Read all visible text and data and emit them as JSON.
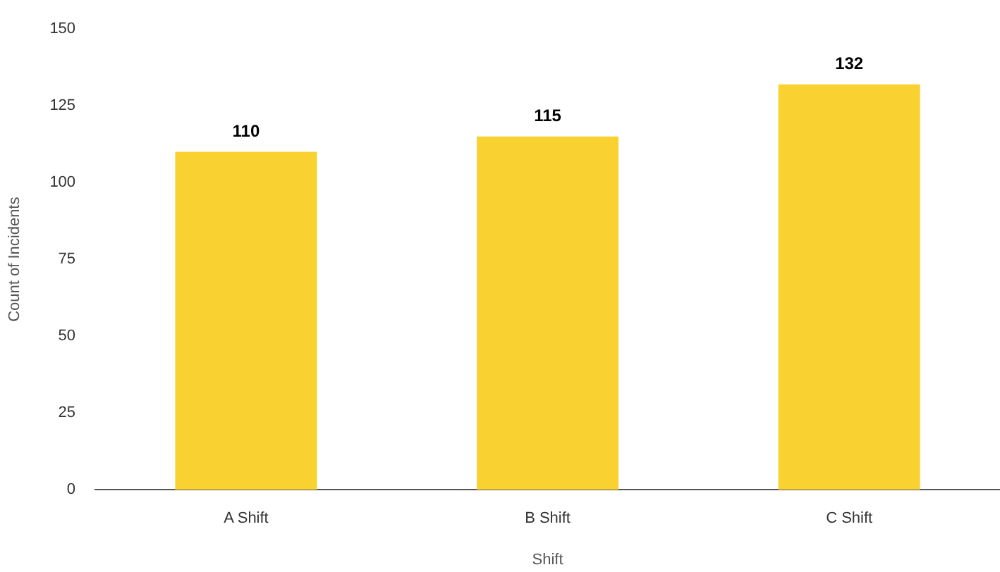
{
  "chart_data": {
    "type": "bar",
    "xlabel": "Shift",
    "ylabel": "Count of Incidents",
    "categories": [
      "A Shift",
      "B Shift",
      "C Shift"
    ],
    "values": [
      110,
      115,
      132
    ],
    "color": "#f9d232",
    "ylim": [
      0,
      150
    ],
    "yticks": [
      0,
      25,
      50,
      75,
      100,
      125,
      150
    ],
    "grid": false,
    "legend": false,
    "data_labels": true
  }
}
